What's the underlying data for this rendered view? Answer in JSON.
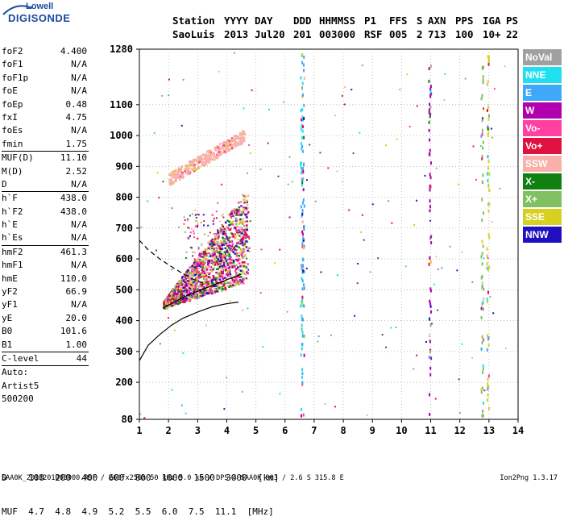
{
  "logo": {
    "line1": "Lowell",
    "line2": "DIGISONDE"
  },
  "header": {
    "labels": [
      "Station",
      "YYYY",
      "DAY",
      "DDD",
      "HHMMSS",
      "P1",
      "FFS",
      "S",
      "AXN",
      "PPS",
      "IGA",
      "PS"
    ],
    "values": [
      "SaoLuis",
      "2013",
      "Jul20",
      "201",
      "003000",
      "RSF",
      "005",
      "2",
      "713",
      "100",
      "10+",
      "22"
    ]
  },
  "params": {
    "group1": [
      {
        "label": "foF2",
        "value": "4.400"
      },
      {
        "label": "foF1",
        "value": "N/A"
      },
      {
        "label": "foF1p",
        "value": "N/A"
      },
      {
        "label": "foE",
        "value": "N/A"
      },
      {
        "label": "foEp",
        "value": "0.48"
      },
      {
        "label": "fxI",
        "value": "4.75"
      },
      {
        "label": "foEs",
        "value": "N/A"
      },
      {
        "label": "fmin",
        "value": "1.75"
      }
    ],
    "group2": [
      {
        "label": "MUF(D)",
        "value": "11.10"
      },
      {
        "label": "M(D)",
        "value": "2.52"
      },
      {
        "label": "D",
        "value": "N/A"
      }
    ],
    "group3": [
      {
        "label": "h`F",
        "value": "438.0"
      },
      {
        "label": "h`F2",
        "value": "438.0"
      },
      {
        "label": "h`E",
        "value": "N/A"
      },
      {
        "label": "h`Es",
        "value": "N/A"
      }
    ],
    "group4": [
      {
        "label": "hmF2",
        "value": "461.3"
      },
      {
        "label": "hmF1",
        "value": "N/A"
      },
      {
        "label": "hmE",
        "value": "110.0"
      },
      {
        "label": "yF2",
        "value": "66.9"
      },
      {
        "label": "yF1",
        "value": "N/A"
      },
      {
        "label": "yE",
        "value": "20.0"
      },
      {
        "label": "B0",
        "value": "101.6"
      },
      {
        "label": "B1",
        "value": "1.00"
      }
    ],
    "group5": [
      {
        "label": "C-level",
        "value": "44"
      }
    ],
    "autoscale": [
      "Auto:",
      "Artist5",
      "500200"
    ]
  },
  "legend": [
    {
      "label": "NoVal",
      "color": "#a0a0a0"
    },
    {
      "label": "NNE",
      "color": "#20e0f0"
    },
    {
      "label": "E",
      "color": "#40a8f8"
    },
    {
      "label": "W",
      "color": "#b000b0"
    },
    {
      "label": "Vo-",
      "color": "#ff40a0"
    },
    {
      "label": "Vo+",
      "color": "#e01040"
    },
    {
      "label": "SSW",
      "color": "#f8b0a8"
    },
    {
      "label": "X-",
      "color": "#108010"
    },
    {
      "label": "X+",
      "color": "#80c060"
    },
    {
      "label": "SSE",
      "color": "#d8d020"
    },
    {
      "label": "NNW",
      "color": "#2010c0"
    }
  ],
  "muf_table": {
    "d_label": "D",
    "d_values": "100  200  400  600  800  1000  1500  3000",
    "d_unit": "[km]",
    "muf_label": "MUF",
    "muf_values": "4.7  4.8  4.9  5.2  5.5  6.0  7.5  11.1",
    "muf_unit": "[MHz]"
  },
  "footer": {
    "left": "SAA0K_2013201003000.RSF / 260fx256h 50 kHz 5.0 km / DPS-4 SAA0K 903 / 2.6 S 315.8 E",
    "right": "Ion2Png 1.3.17"
  },
  "chart_data": {
    "type": "scatter",
    "xlim": [
      1,
      14
    ],
    "ylim": [
      80,
      1280
    ],
    "x_ticks": [
      1,
      2,
      3,
      4,
      5,
      6,
      7,
      8,
      9,
      10,
      11,
      12,
      13,
      14
    ],
    "y_ticks": [
      80,
      200,
      300,
      400,
      500,
      600,
      700,
      800,
      900,
      1000,
      1100,
      1280
    ],
    "grid": "dotted",
    "legend_placement": "right",
    "profile_line": {
      "x": [
        1.0,
        1.3,
        1.7,
        2.1,
        2.5,
        3.0,
        3.5,
        4.0,
        4.4
      ],
      "y": [
        270,
        320,
        355,
        385,
        408,
        428,
        445,
        455,
        460
      ]
    },
    "profile_dashed": {
      "x": [
        1.0,
        1.3,
        1.7,
        2.1,
        2.5,
        2.9,
        3.2
      ],
      "y": [
        660,
        630,
        600,
        575,
        552,
        532,
        520
      ]
    },
    "trace_curve": {
      "x": [
        1.8,
        2.2,
        2.6,
        3.0,
        3.4,
        3.8,
        4.2,
        4.5
      ],
      "y": [
        440,
        460,
        480,
        495,
        510,
        525,
        540,
        550
      ]
    }
  }
}
